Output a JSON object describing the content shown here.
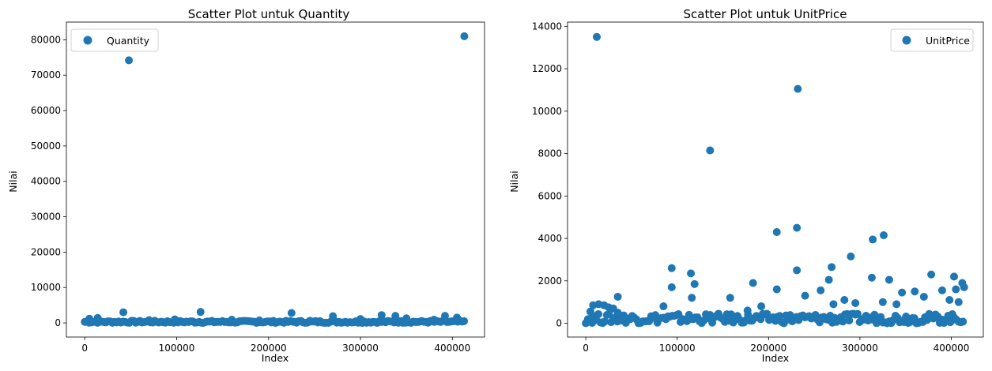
{
  "chart_data": [
    {
      "type": "scatter",
      "title": "Scatter Plot untuk Quantity",
      "xlabel": "Index",
      "ylabel": "Nilai",
      "xlim": [
        -20000,
        435000
      ],
      "ylim": [
        -4000,
        85000
      ],
      "xticks": [
        0,
        100000,
        200000,
        300000,
        400000
      ],
      "yticks": [
        0,
        10000,
        20000,
        30000,
        40000,
        50000,
        60000,
        70000,
        80000
      ],
      "grid": false,
      "legend_position": "top-left",
      "color": "#1f77b4",
      "series": [
        {
          "name": "Quantity",
          "points": [
            [
              48000,
              74200
            ],
            [
              413000,
              81000
            ],
            [
              42000,
              3000
            ],
            [
              126000,
              3100
            ],
            [
              225000,
              2800
            ],
            [
              270000,
              1900
            ],
            [
              323000,
              2200
            ],
            [
              338000,
              2000
            ],
            [
              392000,
              2000
            ],
            [
              14000,
              1400
            ],
            [
              5000,
              1200
            ],
            [
              98000,
              1000
            ],
            [
              160000,
              900
            ],
            [
              300000,
              1100
            ],
            [
              350000,
              1300
            ],
            [
              405000,
              1500
            ],
            [
              70000,
              800
            ],
            [
              190000,
              700
            ],
            [
              245000,
              600
            ],
            [
              380000,
              900
            ]
          ],
          "band": {
            "x_from": 0,
            "x_to": 415000,
            "y_from": 0,
            "y_to": 600
          }
        }
      ]
    },
    {
      "type": "scatter",
      "title": "Scatter Plot untuk UnitPrice",
      "xlabel": "Index",
      "ylabel": "Nilai",
      "xlim": [
        -20000,
        435000
      ],
      "ylim": [
        -650,
        14200
      ],
      "xticks": [
        0,
        100000,
        200000,
        300000,
        400000
      ],
      "yticks": [
        0,
        2000,
        4000,
        6000,
        8000,
        10000,
        12000,
        14000
      ],
      "grid": false,
      "legend_position": "top-right",
      "color": "#1f77b4",
      "series": [
        {
          "name": "UnitPrice",
          "points": [
            [
              12000,
              13500
            ],
            [
              232000,
              11050
            ],
            [
              136000,
              8150
            ],
            [
              209000,
              4300
            ],
            [
              231000,
              4500
            ],
            [
              314000,
              3950
            ],
            [
              326000,
              4150
            ],
            [
              290000,
              3150
            ],
            [
              94000,
              2600
            ],
            [
              115000,
              2350
            ],
            [
              269000,
              2650
            ],
            [
              231000,
              2500
            ],
            [
              313000,
              2150
            ],
            [
              332000,
              2050
            ],
            [
              378000,
              2300
            ],
            [
              403000,
              2200
            ],
            [
              412000,
              1900
            ],
            [
              116000,
              1200
            ],
            [
              119000,
              1850
            ],
            [
              94000,
              1700
            ],
            [
              183000,
              1900
            ],
            [
              209000,
              1600
            ],
            [
              257000,
              1550
            ],
            [
              266000,
              2050
            ],
            [
              360000,
              1500
            ],
            [
              390000,
              1550
            ],
            [
              405000,
              1600
            ],
            [
              414000,
              1700
            ],
            [
              35000,
              1250
            ],
            [
              158000,
              1200
            ],
            [
              177000,
              600
            ],
            [
              85000,
              800
            ],
            [
              5000,
              550
            ],
            [
              8000,
              850
            ],
            [
              14000,
              900
            ],
            [
              20000,
              850
            ],
            [
              25000,
              750
            ],
            [
              30000,
              700
            ],
            [
              35000,
              500
            ],
            [
              240000,
              1300
            ],
            [
              283000,
              1100
            ],
            [
              346000,
              1450
            ],
            [
              370000,
              1250
            ],
            [
              398000,
              1100
            ],
            [
              408000,
              1000
            ],
            [
              192000,
              800
            ],
            [
              271000,
              900
            ],
            [
              295000,
              950
            ],
            [
              325000,
              1000
            ],
            [
              340000,
              900
            ]
          ],
          "band": {
            "x_from": 0,
            "x_to": 415000,
            "y_from": 0,
            "y_to": 450
          }
        }
      ]
    }
  ]
}
